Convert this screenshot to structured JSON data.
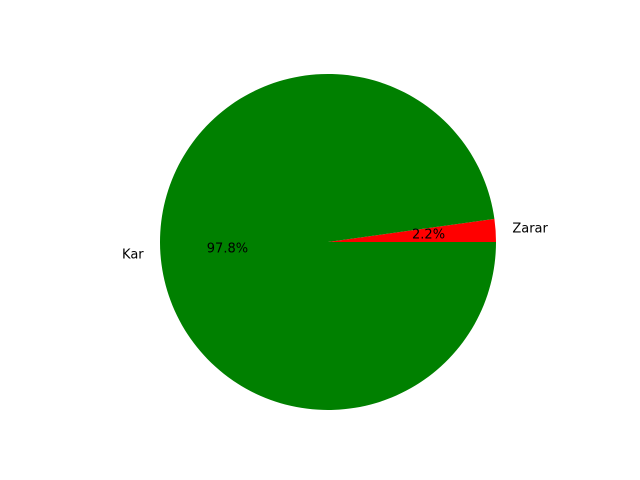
{
  "chart_data": {
    "type": "pie",
    "slices": [
      {
        "label": "Zarar",
        "value": 2.2,
        "pct_label": "2.2%",
        "color": "#ff0000"
      },
      {
        "label": "Kar",
        "value": 97.8,
        "pct_label": "97.8%",
        "color": "#008000"
      }
    ],
    "start_angle": 0,
    "direction": "counterclockwise"
  }
}
